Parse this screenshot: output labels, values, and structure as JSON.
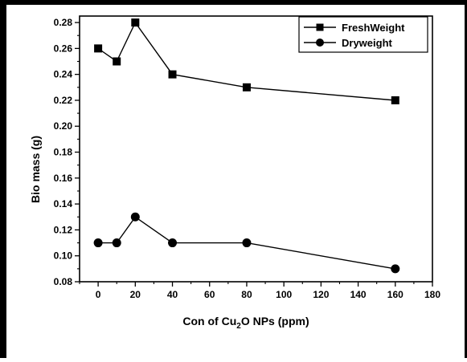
{
  "chart_data": {
    "type": "line",
    "title": "",
    "xlabel": {
      "prefix": "Con of Cu",
      "sub": "2",
      "suffix": "O NPs (ppm)"
    },
    "ylabel": "Bio mass (g)",
    "xlim": [
      -10,
      180
    ],
    "ylim": [
      0.08,
      0.285
    ],
    "xticks": [
      0,
      20,
      40,
      60,
      80,
      100,
      120,
      140,
      160,
      180
    ],
    "yticks": [
      0.08,
      0.1,
      0.12,
      0.14,
      0.16,
      0.18,
      0.2,
      0.22,
      0.24,
      0.26,
      0.28
    ],
    "grid": false,
    "legend_position": "top-right",
    "series": [
      {
        "name": "FreshWeight",
        "marker": "square",
        "x": [
          0,
          10,
          20,
          40,
          80,
          160
        ],
        "y": [
          0.26,
          0.25,
          0.28,
          0.24,
          0.23,
          0.22
        ]
      },
      {
        "name": "Dryweight",
        "marker": "circle",
        "x": [
          0,
          10,
          20,
          40,
          80,
          160
        ],
        "y": [
          0.11,
          0.11,
          0.13,
          0.11,
          0.11,
          0.09
        ]
      }
    ]
  }
}
